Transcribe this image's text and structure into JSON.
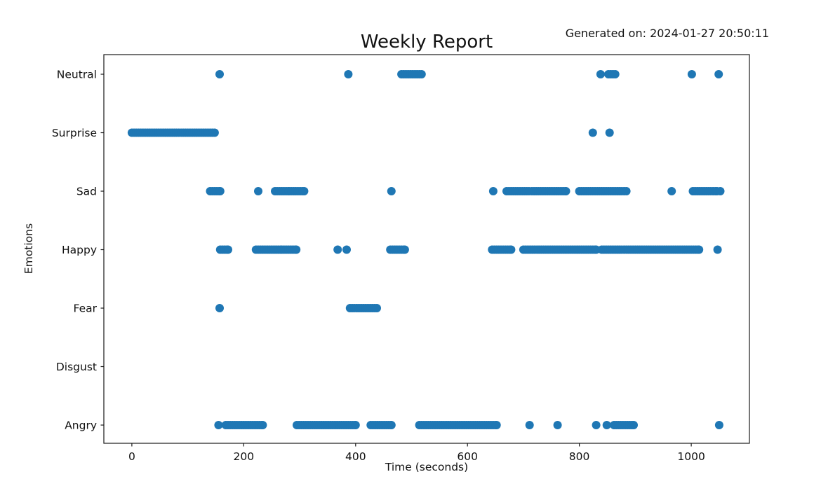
{
  "chart_data": {
    "type": "scatter",
    "title": "Weekly Report",
    "generated_on": "Generated on: 2024-01-27 20:50:11",
    "xlabel": "Time (seconds)",
    "ylabel": "Emotions",
    "categories": [
      "Neutral",
      "Surprise",
      "Sad",
      "Happy",
      "Fear",
      "Disgust",
      "Angry"
    ],
    "xticks": [
      0,
      200,
      400,
      600,
      800,
      1000
    ],
    "xlim": [
      -50,
      1104
    ],
    "grid": false,
    "legend": "none",
    "dot_color": "#1f77b4",
    "axis_color": "#1a1a1a",
    "series": [
      {
        "emotion": "Neutral",
        "events": [
          157,
          387,
          [
            482,
            518
          ],
          838,
          [
            852,
            864
          ],
          1001,
          1049
        ]
      },
      {
        "emotion": "Surprise",
        "events": [
          [
            0,
            148
          ],
          824,
          854
        ]
      },
      {
        "emotion": "Sad",
        "events": [
          [
            140,
            158
          ],
          226,
          [
            256,
            281
          ],
          [
            285,
            308
          ],
          464,
          646,
          [
            670,
            710
          ],
          [
            715,
            776
          ],
          [
            800,
            884
          ],
          965,
          [
            1003,
            1046
          ],
          1052
        ]
      },
      {
        "emotion": "Happy",
        "events": [
          [
            158,
            172
          ],
          [
            222,
            268
          ],
          [
            272,
            294
          ],
          368,
          384,
          [
            462,
            488
          ],
          [
            644,
            678
          ],
          [
            700,
            830
          ],
          [
            840,
            1014
          ],
          1047
        ]
      },
      {
        "emotion": "Fear",
        "events": [
          157,
          [
            390,
            438
          ]
        ]
      },
      {
        "emotion": "Disgust",
        "events": []
      },
      {
        "emotion": "Angry",
        "events": [
          155,
          [
            168,
            234
          ],
          [
            295,
            400
          ],
          [
            427,
            464
          ],
          [
            514,
            652
          ],
          711,
          761,
          830,
          849,
          [
            862,
            897
          ],
          1050
        ]
      }
    ]
  }
}
